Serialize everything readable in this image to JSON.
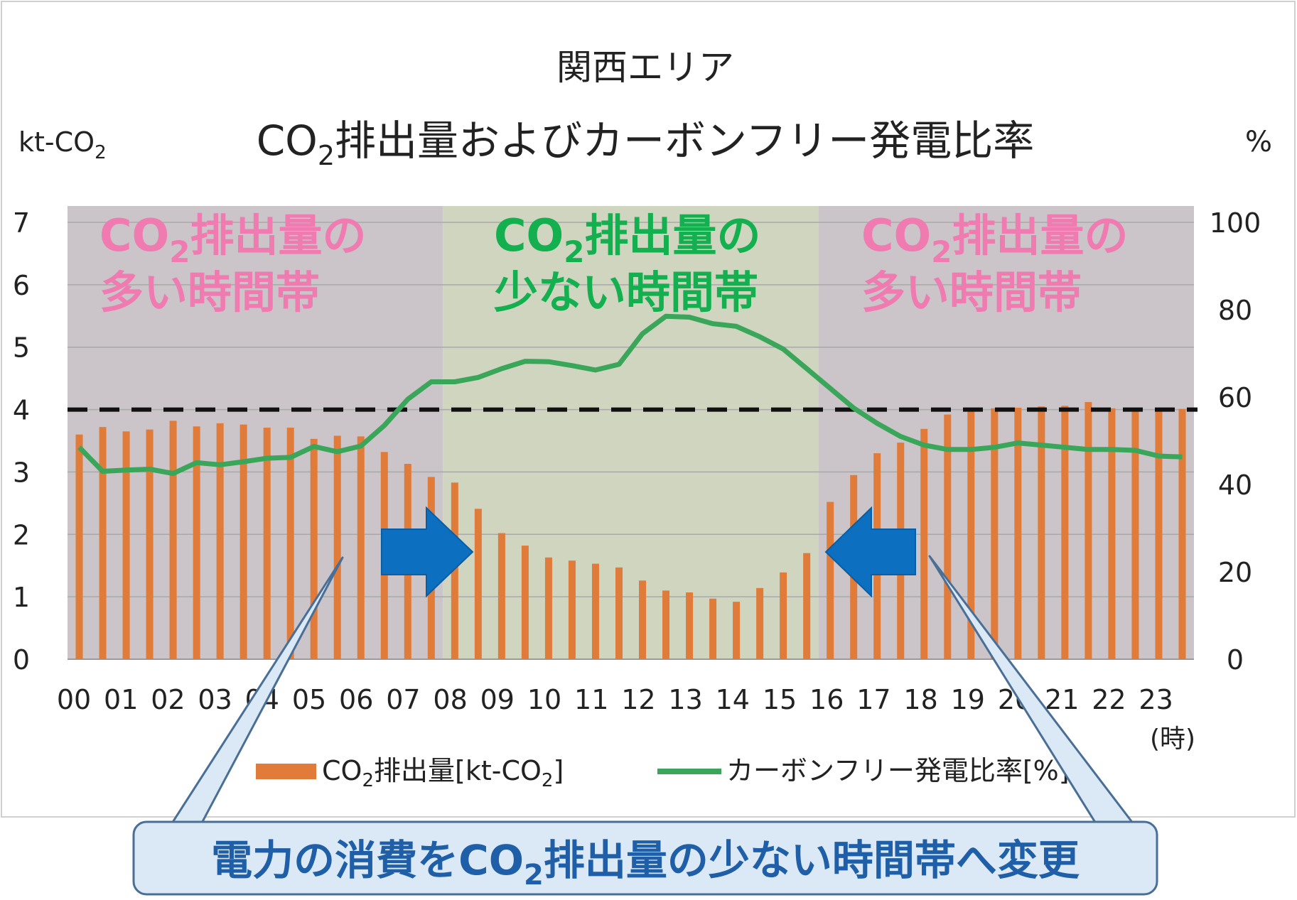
{
  "chart_data": {
    "type": "bar+line",
    "title": "関西エリア",
    "subtitle_main": "CO",
    "subtitle_sub": "2",
    "subtitle_rest": "排出量およびカーボンフリー発電比率",
    "y_left_label_main": "kt-CO",
    "y_left_label_sub": "2",
    "y_right_label": "%",
    "x_unit_label": "(時)",
    "ylim_left": [
      0,
      7
    ],
    "ylim_right": [
      0,
      100
    ],
    "y_left_ticks": [
      "0",
      "1",
      "2",
      "3",
      "4",
      "5",
      "6",
      "7"
    ],
    "y_right_ticks": [
      "0",
      "20",
      "40",
      "60",
      "80",
      "100"
    ],
    "x_ticks": [
      "00",
      "01",
      "02",
      "03",
      "04",
      "05",
      "06",
      "07",
      "08",
      "09",
      "10",
      "11",
      "12",
      "13",
      "14",
      "15",
      "16",
      "17",
      "18",
      "19",
      "20",
      "21",
      "22",
      "23"
    ],
    "co2_emissions": [
      3.6,
      3.72,
      3.65,
      3.68,
      3.82,
      3.73,
      3.78,
      3.76,
      3.71,
      3.71,
      3.53,
      3.58,
      3.57,
      3.32,
      3.13,
      2.92,
      2.83,
      2.41,
      2.02,
      1.82,
      1.63,
      1.58,
      1.53,
      1.47,
      1.26,
      1.1,
      1.07,
      0.97,
      0.92,
      1.14,
      1.39,
      1.7,
      2.52,
      2.95,
      3.3,
      3.47,
      3.69,
      3.92,
      4.0,
      4.02,
      4.03,
      4.05,
      4.06,
      4.12,
      4.02,
      4.01,
      4.0,
      4.01
    ],
    "carbon_free_ratio": [
      48.5,
      43,
      43.3,
      43.5,
      42.5,
      45,
      44.5,
      45.2,
      46,
      46.2,
      48.7,
      47.5,
      48.8,
      53.5,
      59.5,
      63.5,
      63.5,
      64.5,
      66.5,
      68.2,
      68.1,
      67.2,
      66.2,
      67.5,
      74.5,
      78.5,
      78.3,
      76.8,
      76.2,
      73.8,
      71,
      66.5,
      62,
      57.5,
      54,
      51,
      49,
      48,
      48,
      48.5,
      49.5,
      49,
      48.5,
      48,
      48,
      47.8,
      46.5,
      46.3
    ],
    "threshold_left": 4.0,
    "shaded_regions": [
      {
        "label_line1_main": "CO",
        "label_line1_sub": "2",
        "label_line1_rest": "排出量の",
        "label_line2": "多い時間帯",
        "color": "#ef7bb1",
        "from_hour": 0,
        "to_hour": 8
      },
      {
        "label_line1_main": "CO",
        "label_line1_sub": "2",
        "label_line1_rest": "排出量の",
        "label_line2": "少ない時間帯",
        "color": "#14b050",
        "from_hour": 8,
        "to_hour": 16
      },
      {
        "label_line1_main": "CO",
        "label_line1_sub": "2",
        "label_line1_rest": "排出量の",
        "label_line2": "多い時間帯",
        "color": "#ef7bb1",
        "from_hour": 16,
        "to_hour": 24
      }
    ],
    "legend": {
      "bar_main": "CO",
      "bar_sub": "2",
      "bar_rest": "排出量[kt-CO",
      "bar_sub2": "2",
      "bar_end": "]",
      "line_label": "カーボンフリー発電比率[%]"
    },
    "callout": {
      "text_main": "電力の消費をCO",
      "text_sub": "2",
      "text_rest": "排出量の少ない時間帯へ変更"
    },
    "colors": {
      "bar": "#e07b3a",
      "line": "#3aa65a",
      "high_band": "#cbc4c8",
      "low_band": "#cfd5bf",
      "arrow": "#0c6fc0",
      "callout_fill": "#dbe9f6",
      "callout_border": "#4a6f96",
      "callout_text": "#1f5fa8",
      "threshold": "#111111"
    }
  }
}
